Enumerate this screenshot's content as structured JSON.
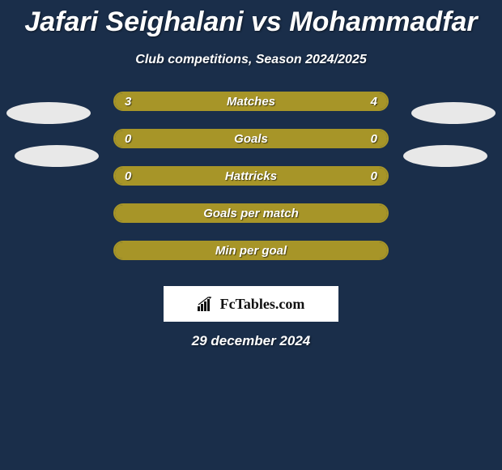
{
  "colors": {
    "background": "#1a2e4a",
    "bar_border": "#a79528",
    "bar_fill": "#a79528",
    "text": "#ffffff",
    "avatar": "#e8e8e8",
    "brand_bg": "#ffffff",
    "brand_text": "#111111"
  },
  "title": "Jafari Seighalani vs Mohammadfar",
  "subtitle": "Club competitions, Season 2024/2025",
  "stats": [
    {
      "label": "Matches",
      "left_val": "3",
      "right_val": "4",
      "left_pct": 42.9,
      "right_pct": 57.1
    },
    {
      "label": "Goals",
      "left_val": "0",
      "right_val": "0",
      "left_pct": 100,
      "right_pct": 0
    },
    {
      "label": "Hattricks",
      "left_val": "0",
      "right_val": "0",
      "left_pct": 100,
      "right_pct": 0
    },
    {
      "label": "Goals per match",
      "left_val": "",
      "right_val": "",
      "left_pct": 100,
      "right_pct": 0
    },
    {
      "label": "Min per goal",
      "left_val": "",
      "right_val": "",
      "left_pct": 100,
      "right_pct": 0
    }
  ],
  "brand": "FcTables.com",
  "date": "29 december 2024"
}
